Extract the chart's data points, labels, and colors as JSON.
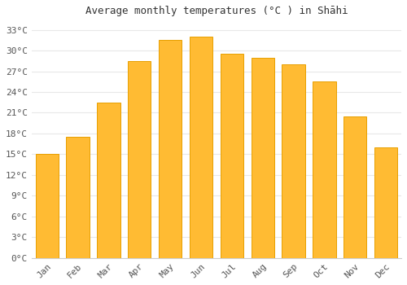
{
  "months": [
    "Jan",
    "Feb",
    "Mar",
    "Apr",
    "May",
    "Jun",
    "Jul",
    "Aug",
    "Sep",
    "Oct",
    "Nov",
    "Dec"
  ],
  "temperatures": [
    15.0,
    17.5,
    22.5,
    28.5,
    31.5,
    32.0,
    29.5,
    29.0,
    28.0,
    25.5,
    20.5,
    16.0
  ],
  "bar_color": "#FFBB33",
  "bar_edge_color": "#E8A000",
  "background_color": "#FFFFFF",
  "grid_color": "#E8E8E8",
  "title": "Average monthly temperatures (°C ) in Shāhi",
  "title_fontsize": 9,
  "tick_label_fontsize": 8,
  "ylim": [
    0,
    34
  ],
  "ytick_step": 3
}
